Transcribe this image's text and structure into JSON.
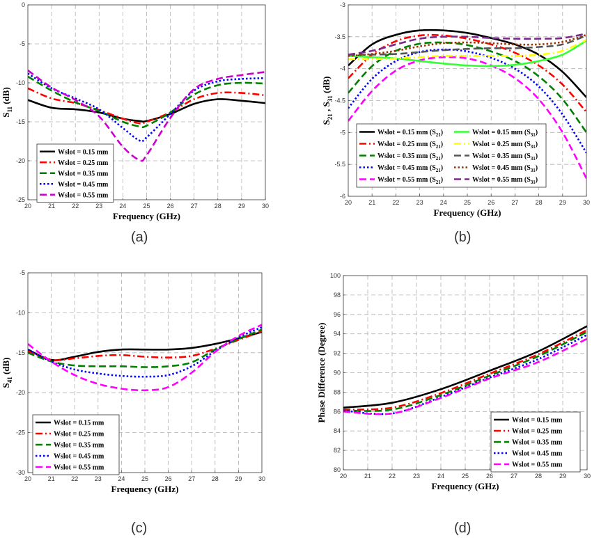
{
  "captions": [
    "(a)",
    "(b)",
    "(c)",
    "(d)"
  ],
  "chart_data": [
    {
      "type": "line",
      "xlabel": "Frequency (GHz)",
      "ylabel": "S11 (dB)",
      "ylabel_main": "S",
      "ylabel_sub": "11",
      "ylabel_tail": " (dB)",
      "xlim": [
        20,
        30
      ],
      "ylim": [
        -25,
        0
      ],
      "xticks": [
        20,
        21,
        22,
        23,
        24,
        25,
        26,
        27,
        28,
        29,
        30
      ],
      "yticks": [
        -25,
        -20,
        -15,
        -10,
        -5,
        0
      ],
      "grid": true,
      "legend_position": "bottom-left",
      "x": [
        20,
        21,
        22,
        23,
        24,
        24.7,
        25,
        26,
        27,
        28,
        29,
        30
      ],
      "series": [
        {
          "name": "Wslot = 0.15 mm",
          "color": "#000000",
          "dash": "solid",
          "values": [
            -12.2,
            -13.2,
            -13.4,
            -13.8,
            -14.6,
            -14.9,
            -14.9,
            -14.0,
            -12.7,
            -12.1,
            -12.3,
            -12.6
          ]
        },
        {
          "name": "Wslot = 0.25 mm",
          "color": "#ff0000",
          "dash": "dashdot",
          "values": [
            -10.7,
            -12.0,
            -12.6,
            -13.5,
            -14.6,
            -15.2,
            -15.0,
            -13.8,
            -12.1,
            -11.3,
            -11.3,
            -11.6
          ]
        },
        {
          "name": "Wslot = 0.35 mm",
          "color": "#008000",
          "dash": "dash",
          "values": [
            -9.2,
            -11.0,
            -12.5,
            -13.6,
            -15.0,
            -15.6,
            -15.5,
            -13.8,
            -11.5,
            -10.3,
            -10.0,
            -10.1
          ]
        },
        {
          "name": "Wslot = 0.45 mm",
          "color": "#0000ff",
          "dash": "dot",
          "values": [
            -8.8,
            -10.7,
            -12.0,
            -13.4,
            -15.8,
            -17.4,
            -17.0,
            -14.0,
            -11.0,
            -9.8,
            -9.5,
            -9.4
          ]
        },
        {
          "name": "Wslot = 0.55 mm",
          "color": "#cc00cc",
          "dash": "dash",
          "values": [
            -8.4,
            -10.6,
            -12.2,
            -14.3,
            -18.2,
            -19.9,
            -19.3,
            -14.5,
            -10.8,
            -9.5,
            -9.0,
            -8.6
          ]
        }
      ]
    },
    {
      "type": "line",
      "xlabel": "Frequency (GHz)",
      "ylabel": "S21 , S31 (dB)",
      "xlim": [
        20,
        30
      ],
      "ylim": [
        -6,
        -3
      ],
      "xticks": [
        20,
        21,
        22,
        23,
        24,
        25,
        26,
        27,
        28,
        29,
        30
      ],
      "yticks": [
        -6,
        -5.5,
        -5,
        -4.5,
        -4,
        -3.5,
        -3
      ],
      "grid": true,
      "legend_position": "bottom (two columns)",
      "x": [
        20,
        21,
        22,
        23,
        24,
        25,
        26,
        27,
        28,
        29,
        30
      ],
      "series": [
        {
          "name": "Wslot = 0.15 mm (S21)",
          "label_main": "Wslot = 0.15 mm (S",
          "label_sub": "21",
          "color": "#000000",
          "dash": "solid",
          "values": [
            -3.95,
            -3.62,
            -3.47,
            -3.4,
            -3.4,
            -3.44,
            -3.52,
            -3.62,
            -3.78,
            -4.05,
            -4.45
          ]
        },
        {
          "name": "Wslot = 0.25 mm (S21)",
          "label_main": "Wslot = 0.25 mm (S",
          "label_sub": "21",
          "color": "#ff0000",
          "dash": "dashdot",
          "values": [
            -4.15,
            -3.78,
            -3.57,
            -3.48,
            -3.48,
            -3.53,
            -3.62,
            -3.75,
            -3.95,
            -4.25,
            -4.68
          ]
        },
        {
          "name": "Wslot = 0.35 mm (S21)",
          "label_main": "Wslot = 0.35 mm (S",
          "label_sub": "21",
          "color": "#008000",
          "dash": "dash",
          "values": [
            -4.38,
            -3.96,
            -3.72,
            -3.61,
            -3.59,
            -3.63,
            -3.73,
            -3.88,
            -4.12,
            -4.48,
            -5.0
          ]
        },
        {
          "name": "Wslot = 0.45 mm (S21)",
          "label_main": "Wslot = 0.45 mm (S",
          "label_sub": "21",
          "color": "#0000ff",
          "dash": "dot",
          "values": [
            -4.62,
            -4.16,
            -3.88,
            -3.74,
            -3.7,
            -3.73,
            -3.83,
            -4.0,
            -4.28,
            -4.72,
            -5.32
          ]
        },
        {
          "name": "Wslot = 0.55 mm (S21)",
          "label_main": "Wslot = 0.55 mm (S",
          "label_sub": "21",
          "color": "#ff00ff",
          "dash": "dash",
          "values": [
            -4.82,
            -4.35,
            -4.03,
            -3.87,
            -3.82,
            -3.84,
            -3.95,
            -4.15,
            -4.48,
            -5.0,
            -5.72
          ]
        },
        {
          "name": "Wslot = 0.15 mm (S31)",
          "label_main": "Wslot = 0.15 mm (S",
          "label_sub": "31",
          "color": "#33ff33",
          "dash": "solid",
          "values": [
            -3.8,
            -3.82,
            -3.84,
            -3.88,
            -3.92,
            -3.95,
            -3.96,
            -3.94,
            -3.88,
            -3.78,
            -3.56
          ]
        },
        {
          "name": "Wslot = 0.25 mm (S31)",
          "label_main": "Wslot = 0.25 mm (S",
          "label_sub": "31",
          "color": "#ffff00",
          "dash": "dashdot",
          "values": [
            -3.85,
            -3.85,
            -3.84,
            -3.82,
            -3.8,
            -3.8,
            -3.8,
            -3.8,
            -3.78,
            -3.72,
            -3.55
          ]
        },
        {
          "name": "Wslot = 0.35 mm (S31)",
          "label_main": "Wslot = 0.35 mm (S",
          "label_sub": "31",
          "color": "#555555",
          "dash": "dash",
          "values": [
            -3.78,
            -3.78,
            -3.77,
            -3.74,
            -3.71,
            -3.69,
            -3.68,
            -3.68,
            -3.66,
            -3.62,
            -3.48
          ]
        },
        {
          "name": "Wslot = 0.45 mm (S31)",
          "label_main": "Wslot = 0.45 mm (S",
          "label_sub": "31",
          "color": "#993300",
          "dash": "dot",
          "values": [
            -3.8,
            -3.77,
            -3.72,
            -3.65,
            -3.6,
            -3.59,
            -3.6,
            -3.62,
            -3.62,
            -3.58,
            -3.47
          ]
        },
        {
          "name": "Wslot = 0.55 mm (S31)",
          "label_main": "Wslot = 0.55 mm (S",
          "label_sub": "31",
          "color": "#7a2a8a",
          "dash": "dash",
          "values": [
            -3.78,
            -3.72,
            -3.62,
            -3.53,
            -3.5,
            -3.5,
            -3.52,
            -3.53,
            -3.53,
            -3.52,
            -3.45
          ]
        }
      ]
    },
    {
      "type": "line",
      "xlabel": "Frequency (GHz)",
      "ylabel": "S41 (dB)",
      "ylabel_main": "S",
      "ylabel_sub": "41",
      "ylabel_tail": " (dB)",
      "xlim": [
        20,
        30
      ],
      "ylim": [
        -30,
        -5
      ],
      "xticks": [
        20,
        21,
        22,
        23,
        24,
        25,
        26,
        27,
        28,
        29,
        30
      ],
      "yticks": [
        -30,
        -25,
        -20,
        -15,
        -10,
        -5
      ],
      "grid": true,
      "legend_position": "bottom-left",
      "x": [
        20,
        21,
        22,
        23,
        24,
        25,
        26,
        27,
        28,
        29,
        30
      ],
      "series": [
        {
          "name": "Wslot = 0.15 mm",
          "color": "#000000",
          "dash": "solid",
          "values": [
            -14.6,
            -15.9,
            -15.5,
            -14.9,
            -14.6,
            -14.6,
            -14.6,
            -14.4,
            -13.9,
            -13.2,
            -12.4
          ]
        },
        {
          "name": "Wslot = 0.25 mm",
          "color": "#ff0000",
          "dash": "dashdot",
          "values": [
            -14.8,
            -15.9,
            -15.7,
            -15.4,
            -15.3,
            -15.5,
            -15.6,
            -15.4,
            -14.5,
            -13.4,
            -12.3
          ]
        },
        {
          "name": "Wslot = 0.35 mm",
          "color": "#008000",
          "dash": "dash",
          "values": [
            -15.0,
            -16.1,
            -16.6,
            -16.7,
            -16.7,
            -16.8,
            -16.7,
            -16.2,
            -14.6,
            -13.3,
            -12.1
          ]
        },
        {
          "name": "Wslot = 0.45 mm",
          "color": "#0000ff",
          "dash": "dot",
          "values": [
            -14.6,
            -16.1,
            -17.1,
            -17.6,
            -17.9,
            -18.0,
            -17.8,
            -16.7,
            -14.8,
            -13.1,
            -11.8
          ]
        },
        {
          "name": "Wslot = 0.55 mm",
          "color": "#ff00ff",
          "dash": "dash",
          "values": [
            -13.9,
            -16.1,
            -17.8,
            -18.9,
            -19.5,
            -19.7,
            -19.3,
            -17.5,
            -14.9,
            -12.9,
            -11.5
          ]
        }
      ]
    },
    {
      "type": "line",
      "xlabel": "Frequency (GHz)",
      "ylabel": "Phase Difference (Degree)",
      "xlim": [
        20,
        30
      ],
      "ylim": [
        80,
        100
      ],
      "xticks": [
        20,
        21,
        22,
        23,
        24,
        25,
        26,
        27,
        28,
        29,
        30
      ],
      "yticks": [
        80,
        82,
        84,
        86,
        88,
        90,
        92,
        94,
        96,
        98,
        100
      ],
      "grid": true,
      "legend_position": "bottom-right",
      "x": [
        20,
        22,
        24,
        26,
        28,
        30
      ],
      "series": [
        {
          "name": "Wslot = 0.15 mm",
          "color": "#000000",
          "dash": "solid",
          "values": [
            86.4,
            86.9,
            88.3,
            90.2,
            92.2,
            94.8
          ]
        },
        {
          "name": "Wslot = 0.25 mm",
          "color": "#ff0000",
          "dash": "dashdot",
          "values": [
            86.2,
            86.4,
            87.9,
            89.9,
            91.9,
            94.4
          ]
        },
        {
          "name": "Wslot = 0.35 mm",
          "color": "#008000",
          "dash": "dash",
          "values": [
            86.1,
            86.2,
            87.7,
            89.7,
            91.7,
            94.2
          ]
        },
        {
          "name": "Wslot = 0.45 mm",
          "color": "#0000ff",
          "dash": "dot",
          "values": [
            86.1,
            85.8,
            87.5,
            89.5,
            91.4,
            93.9
          ]
        },
        {
          "name": "Wslot = 0.55 mm",
          "color": "#ff00ff",
          "dash": "dash",
          "values": [
            86.0,
            85.8,
            87.4,
            89.4,
            91.1,
            93.5
          ]
        }
      ]
    }
  ]
}
